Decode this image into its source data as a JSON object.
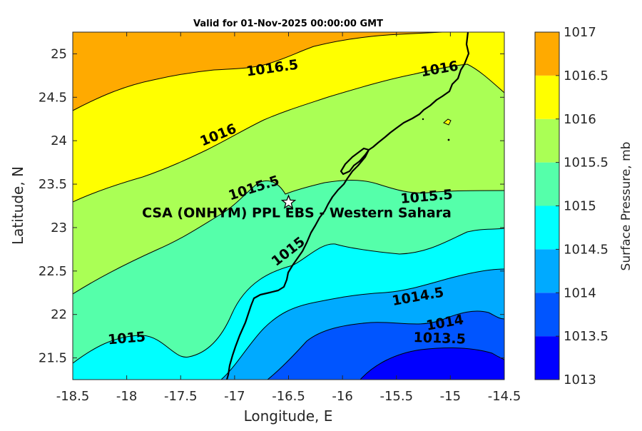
{
  "chart_data": {
    "type": "heatmap",
    "title": "Valid for 01-Nov-2025 00:00:00 GMT",
    "xlabel": "Longitude, E",
    "ylabel": "Latitude, N",
    "xlim": [
      -18.5,
      -14.5
    ],
    "ylim": [
      21.25,
      25.25
    ],
    "x_ticks": [
      "-18.5",
      "-18",
      "-17.5",
      "-17",
      "-16.5",
      "-16",
      "-15.5",
      "-15",
      "-14.5"
    ],
    "y_ticks": [
      "21.5",
      "22",
      "22.5",
      "23",
      "23.5",
      "24",
      "24.5",
      "25"
    ],
    "colorbar": {
      "label": "Surface Pressure, mb",
      "ticks": [
        "1013",
        "1013.5",
        "1014",
        "1014.5",
        "1015",
        "1015.5",
        "1016",
        "1016.5",
        "1017"
      ],
      "levels": [
        1013,
        1013.5,
        1014,
        1014.5,
        1015,
        1015.5,
        1016,
        1016.5,
        1017
      ],
      "colors": [
        "#0000ff",
        "#0055ff",
        "#00aaff",
        "#00ffff",
        "#55ffaa",
        "#aaff55",
        "#ffff00",
        "#ffaa00",
        "#ff5500"
      ]
    },
    "contour_labels": [
      {
        "text": "1016.5",
        "lon": -16.65,
        "lat": 24.83,
        "angle": -8
      },
      {
        "text": "1016",
        "lon": -15.1,
        "lat": 24.82,
        "angle": -10
      },
      {
        "text": "1016",
        "lon": -17.15,
        "lat": 24.06,
        "angle": -22
      },
      {
        "text": "1015.5",
        "lon": -16.82,
        "lat": 23.45,
        "angle": -18
      },
      {
        "text": "1015.5",
        "lon": -15.22,
        "lat": 23.35,
        "angle": -5
      },
      {
        "text": "1015",
        "lon": -16.5,
        "lat": 22.72,
        "angle": -38
      },
      {
        "text": "1015",
        "lon": -18.0,
        "lat": 21.72,
        "angle": -5
      },
      {
        "text": "1014.5",
        "lon": -15.3,
        "lat": 22.2,
        "angle": -10
      },
      {
        "text": "1014",
        "lon": -15.05,
        "lat": 21.9,
        "angle": -10
      },
      {
        "text": "1013.5",
        "lon": -15.1,
        "lat": 21.72,
        "angle": 2
      }
    ],
    "station": {
      "name": "CSA (ONHYM) PPL EBS  - Western Sahara",
      "lon": -16.5,
      "lat": 23.29
    },
    "grid": false
  }
}
